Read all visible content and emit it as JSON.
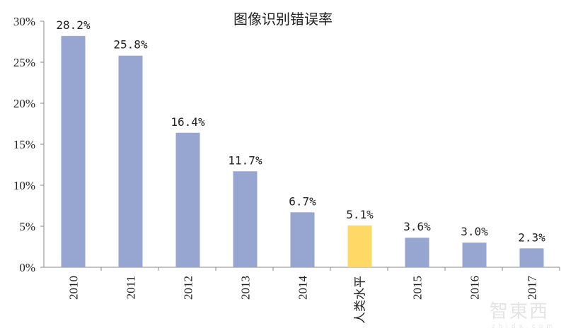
{
  "chart_data": {
    "type": "bar",
    "title": "图像识别错误率",
    "categories": [
      "2010",
      "2011",
      "2012",
      "2013",
      "2014",
      "人类水平",
      "2015",
      "2016",
      "2017"
    ],
    "values": [
      28.2,
      25.8,
      16.4,
      11.7,
      6.7,
      5.1,
      3.6,
      3.0,
      2.3
    ],
    "data_labels": [
      "28.2%",
      "25.8%",
      "16.4%",
      "11.7%",
      "6.7%",
      "5.1%",
      "3.6%",
      "3.0%",
      "2.3%"
    ],
    "ylim": [
      0,
      30
    ],
    "yticks": [
      "0%",
      "5%",
      "10%",
      "15%",
      "20%",
      "25%",
      "30%"
    ],
    "grid": false,
    "colors": {
      "bar": "#97a6d1",
      "highlight": "#ffd966",
      "highlight_category": "人类水平"
    }
  },
  "watermark": {
    "text": "智東西",
    "sub": "zhidx.com"
  }
}
